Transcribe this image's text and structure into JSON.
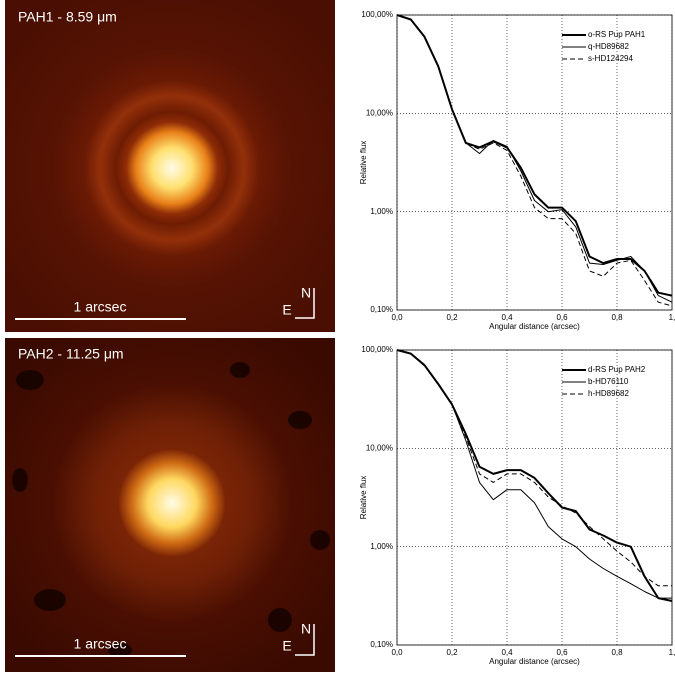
{
  "images": [
    {
      "title": "PAH1 - 8.59 μm",
      "scale_label": "1 arcsec",
      "north": "N",
      "east": "E"
    },
    {
      "title": "PAH2 - 11.25 μm",
      "scale_label": "1 arcsec",
      "north": "N",
      "east": "E"
    }
  ],
  "chart_data": [
    {
      "type": "line",
      "y_label": "Relative flux",
      "x_label": "Angular distance (arcsec)",
      "log_y": true,
      "grid": true,
      "legend": "upper right",
      "xlim": [
        0,
        1
      ],
      "xticks": [
        {
          "value": 0,
          "label": "0,0"
        },
        {
          "value": 0.2,
          "label": "0,2"
        },
        {
          "value": 0.4,
          "label": "0,4"
        },
        {
          "value": 0.6,
          "label": "0,6"
        },
        {
          "value": 0.8,
          "label": "0,8"
        },
        {
          "value": 1,
          "label": "1,"
        }
      ],
      "ylim": [
        0.1,
        100
      ],
      "yticks": [
        {
          "value": 0.1,
          "label": "0,10%"
        },
        {
          "value": 1,
          "label": "1,00%"
        },
        {
          "value": 10,
          "label": "10,00%"
        },
        {
          "value": 100,
          "label": "100,00%"
        }
      ],
      "x": [
        0,
        0.05,
        0.1,
        0.15,
        0.2,
        0.25,
        0.3,
        0.35,
        0.4,
        0.45,
        0.5,
        0.55,
        0.6,
        0.65,
        0.7,
        0.75,
        0.8,
        0.85,
        0.9,
        0.95,
        1.0
      ],
      "series": [
        {
          "name": "o-RS Pup PAH1",
          "color": "#000000",
          "width": 2,
          "dash": false,
          "values": [
            100,
            90,
            60,
            30,
            11,
            5,
            4.5,
            5.2,
            4.5,
            2.8,
            1.5,
            1.1,
            1.1,
            0.8,
            0.35,
            0.3,
            0.33,
            0.33,
            0.25,
            0.15,
            0.14
          ]
        },
        {
          "name": "q-HD89682",
          "color": "#000000",
          "width": 1,
          "dash": false,
          "values": [
            100,
            90,
            60,
            30,
            11,
            5,
            3.9,
            5.3,
            4.6,
            2.6,
            1.3,
            1.0,
            1.05,
            0.7,
            0.3,
            0.29,
            0.32,
            0.35,
            0.25,
            0.14,
            0.12
          ]
        },
        {
          "name": "s-HD124294",
          "color": "#000000",
          "width": 1,
          "dash": true,
          "values": [
            100,
            90,
            60,
            30,
            11,
            5,
            4.3,
            5.0,
            4.2,
            2.3,
            1.1,
            0.85,
            0.85,
            0.6,
            0.25,
            0.22,
            0.3,
            0.32,
            0.2,
            0.12,
            0.11
          ]
        }
      ]
    },
    {
      "type": "line",
      "y_label": "Relative flux",
      "x_label": "Angular distance (arcsec)",
      "log_y": true,
      "grid": true,
      "legend": "upper right",
      "xlim": [
        0,
        1
      ],
      "xticks": [
        {
          "value": 0,
          "label": "0,0"
        },
        {
          "value": 0.2,
          "label": "0,2"
        },
        {
          "value": 0.4,
          "label": "0,4"
        },
        {
          "value": 0.6,
          "label": "0,6"
        },
        {
          "value": 0.8,
          "label": "0,8"
        },
        {
          "value": 1,
          "label": "1,"
        }
      ],
      "ylim": [
        0.1,
        100
      ],
      "yticks": [
        {
          "value": 0.1,
          "label": "0,10%"
        },
        {
          "value": 1,
          "label": "1,00%"
        },
        {
          "value": 10,
          "label": "10,00%"
        },
        {
          "value": 100,
          "label": "100,00%"
        }
      ],
      "x": [
        0,
        0.05,
        0.1,
        0.15,
        0.2,
        0.25,
        0.3,
        0.35,
        0.4,
        0.45,
        0.5,
        0.55,
        0.6,
        0.65,
        0.7,
        0.75,
        0.8,
        0.85,
        0.9,
        0.95,
        1.0
      ],
      "series": [
        {
          "name": "d-RS Pup PAH2",
          "color": "#000000",
          "width": 2,
          "dash": false,
          "values": [
            100,
            92,
            70,
            45,
            28,
            14,
            6.5,
            5.5,
            6,
            6,
            5,
            3.5,
            2.5,
            2.3,
            1.5,
            1.3,
            1.1,
            1.0,
            0.5,
            0.3,
            0.28
          ]
        },
        {
          "name": "b-HD76110",
          "color": "#000000",
          "width": 1,
          "dash": false,
          "values": [
            100,
            92,
            70,
            45,
            28,
            12,
            4.5,
            3.0,
            3.8,
            3.8,
            2.8,
            1.6,
            1.2,
            1.0,
            0.75,
            0.6,
            0.5,
            0.42,
            0.35,
            0.3,
            0.3
          ]
        },
        {
          "name": "h-HD89682",
          "color": "#000000",
          "width": 1,
          "dash": true,
          "values": [
            100,
            92,
            70,
            45,
            28,
            13,
            5.5,
            4.5,
            5.5,
            5.5,
            4.5,
            3.2,
            2.6,
            2.2,
            1.6,
            1.2,
            0.9,
            0.7,
            0.5,
            0.4,
            0.4
          ]
        }
      ]
    }
  ]
}
